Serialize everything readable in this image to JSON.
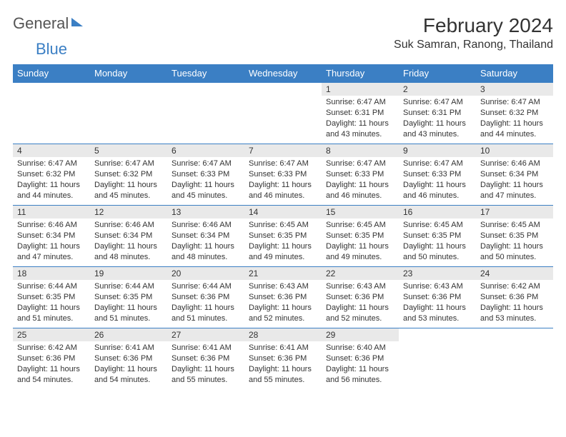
{
  "brand": {
    "part1": "General",
    "part2": "Blue"
  },
  "title": "February 2024",
  "location": "Suk Samran, Ranong, Thailand",
  "colors": {
    "header_bg": "#3b7fc4",
    "daynum_bg": "#e9e9e9",
    "text": "#333333",
    "bg": "#ffffff"
  },
  "weekdays": [
    "Sunday",
    "Monday",
    "Tuesday",
    "Wednesday",
    "Thursday",
    "Friday",
    "Saturday"
  ],
  "weeks": [
    [
      null,
      null,
      null,
      null,
      {
        "n": "1",
        "sr": "Sunrise: 6:47 AM",
        "ss": "Sunset: 6:31 PM",
        "dl": "Daylight: 11 hours and 43 minutes."
      },
      {
        "n": "2",
        "sr": "Sunrise: 6:47 AM",
        "ss": "Sunset: 6:31 PM",
        "dl": "Daylight: 11 hours and 43 minutes."
      },
      {
        "n": "3",
        "sr": "Sunrise: 6:47 AM",
        "ss": "Sunset: 6:32 PM",
        "dl": "Daylight: 11 hours and 44 minutes."
      }
    ],
    [
      {
        "n": "4",
        "sr": "Sunrise: 6:47 AM",
        "ss": "Sunset: 6:32 PM",
        "dl": "Daylight: 11 hours and 44 minutes."
      },
      {
        "n": "5",
        "sr": "Sunrise: 6:47 AM",
        "ss": "Sunset: 6:32 PM",
        "dl": "Daylight: 11 hours and 45 minutes."
      },
      {
        "n": "6",
        "sr": "Sunrise: 6:47 AM",
        "ss": "Sunset: 6:33 PM",
        "dl": "Daylight: 11 hours and 45 minutes."
      },
      {
        "n": "7",
        "sr": "Sunrise: 6:47 AM",
        "ss": "Sunset: 6:33 PM",
        "dl": "Daylight: 11 hours and 46 minutes."
      },
      {
        "n": "8",
        "sr": "Sunrise: 6:47 AM",
        "ss": "Sunset: 6:33 PM",
        "dl": "Daylight: 11 hours and 46 minutes."
      },
      {
        "n": "9",
        "sr": "Sunrise: 6:47 AM",
        "ss": "Sunset: 6:33 PM",
        "dl": "Daylight: 11 hours and 46 minutes."
      },
      {
        "n": "10",
        "sr": "Sunrise: 6:46 AM",
        "ss": "Sunset: 6:34 PM",
        "dl": "Daylight: 11 hours and 47 minutes."
      }
    ],
    [
      {
        "n": "11",
        "sr": "Sunrise: 6:46 AM",
        "ss": "Sunset: 6:34 PM",
        "dl": "Daylight: 11 hours and 47 minutes."
      },
      {
        "n": "12",
        "sr": "Sunrise: 6:46 AM",
        "ss": "Sunset: 6:34 PM",
        "dl": "Daylight: 11 hours and 48 minutes."
      },
      {
        "n": "13",
        "sr": "Sunrise: 6:46 AM",
        "ss": "Sunset: 6:34 PM",
        "dl": "Daylight: 11 hours and 48 minutes."
      },
      {
        "n": "14",
        "sr": "Sunrise: 6:45 AM",
        "ss": "Sunset: 6:35 PM",
        "dl": "Daylight: 11 hours and 49 minutes."
      },
      {
        "n": "15",
        "sr": "Sunrise: 6:45 AM",
        "ss": "Sunset: 6:35 PM",
        "dl": "Daylight: 11 hours and 49 minutes."
      },
      {
        "n": "16",
        "sr": "Sunrise: 6:45 AM",
        "ss": "Sunset: 6:35 PM",
        "dl": "Daylight: 11 hours and 50 minutes."
      },
      {
        "n": "17",
        "sr": "Sunrise: 6:45 AM",
        "ss": "Sunset: 6:35 PM",
        "dl": "Daylight: 11 hours and 50 minutes."
      }
    ],
    [
      {
        "n": "18",
        "sr": "Sunrise: 6:44 AM",
        "ss": "Sunset: 6:35 PM",
        "dl": "Daylight: 11 hours and 51 minutes."
      },
      {
        "n": "19",
        "sr": "Sunrise: 6:44 AM",
        "ss": "Sunset: 6:35 PM",
        "dl": "Daylight: 11 hours and 51 minutes."
      },
      {
        "n": "20",
        "sr": "Sunrise: 6:44 AM",
        "ss": "Sunset: 6:36 PM",
        "dl": "Daylight: 11 hours and 51 minutes."
      },
      {
        "n": "21",
        "sr": "Sunrise: 6:43 AM",
        "ss": "Sunset: 6:36 PM",
        "dl": "Daylight: 11 hours and 52 minutes."
      },
      {
        "n": "22",
        "sr": "Sunrise: 6:43 AM",
        "ss": "Sunset: 6:36 PM",
        "dl": "Daylight: 11 hours and 52 minutes."
      },
      {
        "n": "23",
        "sr": "Sunrise: 6:43 AM",
        "ss": "Sunset: 6:36 PM",
        "dl": "Daylight: 11 hours and 53 minutes."
      },
      {
        "n": "24",
        "sr": "Sunrise: 6:42 AM",
        "ss": "Sunset: 6:36 PM",
        "dl": "Daylight: 11 hours and 53 minutes."
      }
    ],
    [
      {
        "n": "25",
        "sr": "Sunrise: 6:42 AM",
        "ss": "Sunset: 6:36 PM",
        "dl": "Daylight: 11 hours and 54 minutes."
      },
      {
        "n": "26",
        "sr": "Sunrise: 6:41 AM",
        "ss": "Sunset: 6:36 PM",
        "dl": "Daylight: 11 hours and 54 minutes."
      },
      {
        "n": "27",
        "sr": "Sunrise: 6:41 AM",
        "ss": "Sunset: 6:36 PM",
        "dl": "Daylight: 11 hours and 55 minutes."
      },
      {
        "n": "28",
        "sr": "Sunrise: 6:41 AM",
        "ss": "Sunset: 6:36 PM",
        "dl": "Daylight: 11 hours and 55 minutes."
      },
      {
        "n": "29",
        "sr": "Sunrise: 6:40 AM",
        "ss": "Sunset: 6:36 PM",
        "dl": "Daylight: 11 hours and 56 minutes."
      },
      null,
      null
    ]
  ]
}
